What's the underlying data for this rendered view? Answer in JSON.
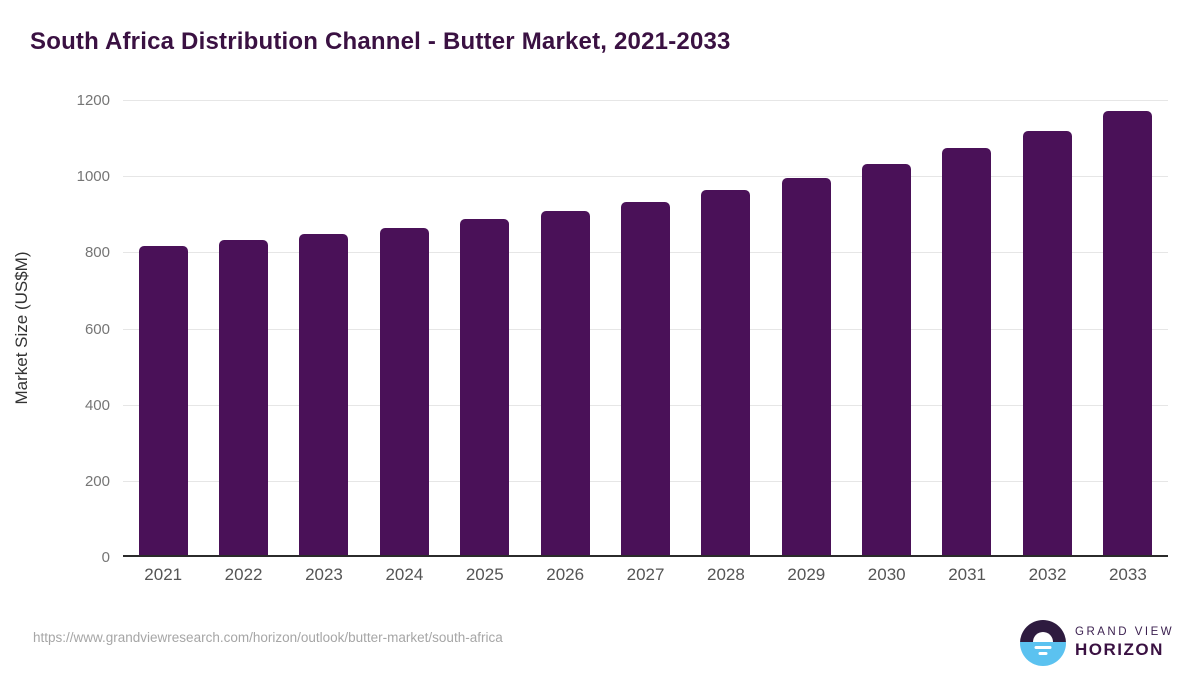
{
  "title": "South Africa Distribution Channel - Butter Market, 2021-2033",
  "colors": {
    "bar": "#4a1158",
    "title_text": "#3a1142",
    "gridline": "#e6e6e6",
    "axis_line": "#2b2b2b",
    "y_tick_text": "#757575",
    "x_tick_text": "#555555",
    "logo_dark": "#2e1b3f",
    "logo_blue": "#5bc2f0"
  },
  "chart_data": {
    "type": "bar",
    "title": "South Africa Distribution Channel - Butter Market, 2021-2033",
    "categories": [
      "2021",
      "2022",
      "2023",
      "2024",
      "2025",
      "2026",
      "2027",
      "2028",
      "2029",
      "2030",
      "2031",
      "2032",
      "2033"
    ],
    "values": [
      815,
      830,
      846,
      863,
      885,
      908,
      931,
      962,
      994,
      1031,
      1073,
      1118,
      1171
    ],
    "xlabel": "",
    "ylabel": "Market Size (US$M)",
    "ylim": [
      0,
      1200
    ],
    "ytick_interval": 200,
    "yticks": [
      0,
      200,
      400,
      600,
      800,
      1000,
      1200
    ],
    "grid": true,
    "legend": "none"
  },
  "footer": {
    "url": "https://www.grandviewresearch.com/horizon/outlook/butter-market/south-africa",
    "logo": {
      "line1": "GRAND VIEW",
      "line2": "HORIZON"
    }
  }
}
